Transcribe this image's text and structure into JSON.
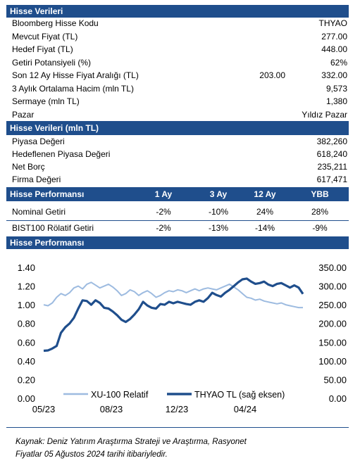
{
  "section1": {
    "title": "Hisse Verileri",
    "rows": [
      {
        "label": "Bloomberg Hisse Kodu",
        "value": "THYAO"
      },
      {
        "label": "Mevcut Fiyat (TL)",
        "value": "277.00"
      },
      {
        "label": "Hedef Fiyat (TL)",
        "value": "448.00"
      },
      {
        "label": "Getiri Potansiyeli (%)",
        "value": "62%"
      },
      {
        "label": "Son 12 Ay Hisse Fiyat Aralığı (TL)",
        "mid": "203.00",
        "value": "332.00"
      },
      {
        "label": "3 Aylık Ortalama Hacim (mln TL)",
        "value": "9,573"
      },
      {
        "label": "Sermaye (mln TL)",
        "value": "1,380"
      },
      {
        "label": "Pazar",
        "value": "Yıldız Pazar"
      }
    ]
  },
  "section2": {
    "title": "Hisse Verileri (mln TL)",
    "rows": [
      {
        "label": "Piyasa Değeri",
        "value": "382,260"
      },
      {
        "label": "Hedeflenen Piyasa Değeri",
        "value": "618,240"
      },
      {
        "label": "Net Borç",
        "value": "235,211"
      },
      {
        "label": "Firma Değeri",
        "value": "617,471"
      }
    ]
  },
  "section3": {
    "title": "Hisse Performansı",
    "columns": [
      "1 Ay",
      "3 Ay",
      "12 Ay",
      "YBB"
    ],
    "rows": [
      {
        "label": "Nominal Getiri",
        "values": [
          "-2%",
          "-10%",
          "24%",
          "28%"
        ]
      },
      {
        "label": "BIST100 Rölatif Getiri",
        "values": [
          "-2%",
          "-13%",
          "-14%",
          "-9%"
        ]
      }
    ]
  },
  "section4": {
    "title": "Hisse Performansı"
  },
  "chart_data": {
    "type": "line",
    "x_tick_labels": [
      "05/23",
      "08/23",
      "12/23",
      "04/24"
    ],
    "y_left": {
      "ticks": [
        "0.00",
        "0.20",
        "0.40",
        "0.60",
        "0.80",
        "1.00",
        "1.20",
        "1.40"
      ],
      "range": [
        0,
        1.4
      ]
    },
    "y_right": {
      "ticks": [
        "0.00",
        "50.00",
        "100.00",
        "150.00",
        "200.00",
        "250.00",
        "300.00",
        "350.00"
      ],
      "range": [
        0,
        350
      ]
    },
    "legend_placement": "bottom-left",
    "series": [
      {
        "name": "XU-100 Relatif",
        "axis": "left",
        "color": "#9dbbe0",
        "values": [
          1.0,
          0.99,
          1.02,
          1.08,
          1.12,
          1.1,
          1.13,
          1.18,
          1.2,
          1.17,
          1.22,
          1.24,
          1.21,
          1.18,
          1.2,
          1.22,
          1.19,
          1.15,
          1.1,
          1.12,
          1.16,
          1.14,
          1.1,
          1.13,
          1.15,
          1.12,
          1.08,
          1.1,
          1.13,
          1.15,
          1.14,
          1.16,
          1.15,
          1.13,
          1.15,
          1.17,
          1.15,
          1.17,
          1.18,
          1.17,
          1.16,
          1.18,
          1.2,
          1.22,
          1.19,
          1.16,
          1.12,
          1.08,
          1.07,
          1.05,
          1.06,
          1.04,
          1.03,
          1.02,
          1.01,
          1.02,
          1.0,
          0.99,
          0.98,
          0.97,
          0.97
        ]
      },
      {
        "name": "THYAO TL (sağ eksen)",
        "axis": "right",
        "color": "#1f4e8c",
        "values": [
          127,
          128,
          133,
          140,
          175,
          190,
          200,
          215,
          240,
          262,
          260,
          250,
          262,
          255,
          242,
          240,
          232,
          222,
          210,
          204,
          212,
          224,
          238,
          258,
          248,
          242,
          240,
          252,
          250,
          258,
          254,
          258,
          255,
          252,
          250,
          258,
          262,
          258,
          268,
          282,
          276,
          272,
          282,
          290,
          300,
          310,
          318,
          320,
          312,
          306,
          308,
          312,
          304,
          300,
          306,
          308,
          302,
          296,
          302,
          296,
          279
        ]
      }
    ]
  },
  "source": {
    "line1": "Kaynak: Deniz Yatırım Araştırma Strateji ve Araştırma, Rasyonet",
    "line2": "Fiyatlar 05 Ağustos 2024 tarihi itibariyledir."
  }
}
